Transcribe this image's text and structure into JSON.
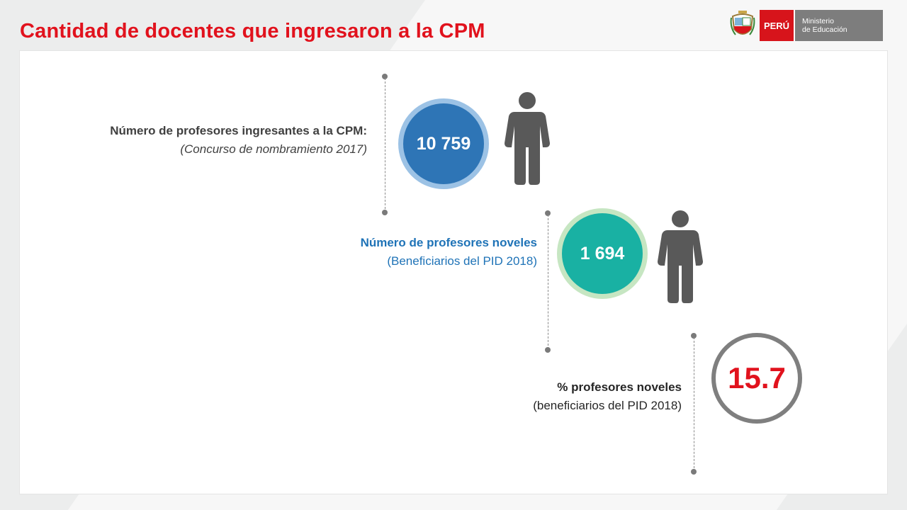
{
  "header": {
    "title": "Cantidad de docentes que ingresaron a la CPM",
    "logo": {
      "country": "PERÚ",
      "ministry_line1": "Ministerio",
      "ministry_line2": "de Educación",
      "emblem_icon": "coat-of-arms-icon"
    }
  },
  "stats": [
    {
      "label": "Número de profesores ingresantes a la CPM:",
      "sublabel": "(Concurso de nombramiento 2017)",
      "value": "10 759",
      "color": "#2e75b6",
      "ring_color": "#9cc2e5",
      "icon": "person-icon"
    },
    {
      "label": "Número de profesores noveles",
      "sublabel": "(Beneficiarios del PID 2018)",
      "value": "1 694",
      "color": "#19b1a3",
      "ring_color": "#c6e6c2",
      "icon": "person-icon"
    },
    {
      "label": "% profesores noveles",
      "sublabel": "(beneficiarios del PID 2018)",
      "value": "15.7",
      "color": "#e1121d",
      "ring_color": "#7f7f7f"
    }
  ]
}
